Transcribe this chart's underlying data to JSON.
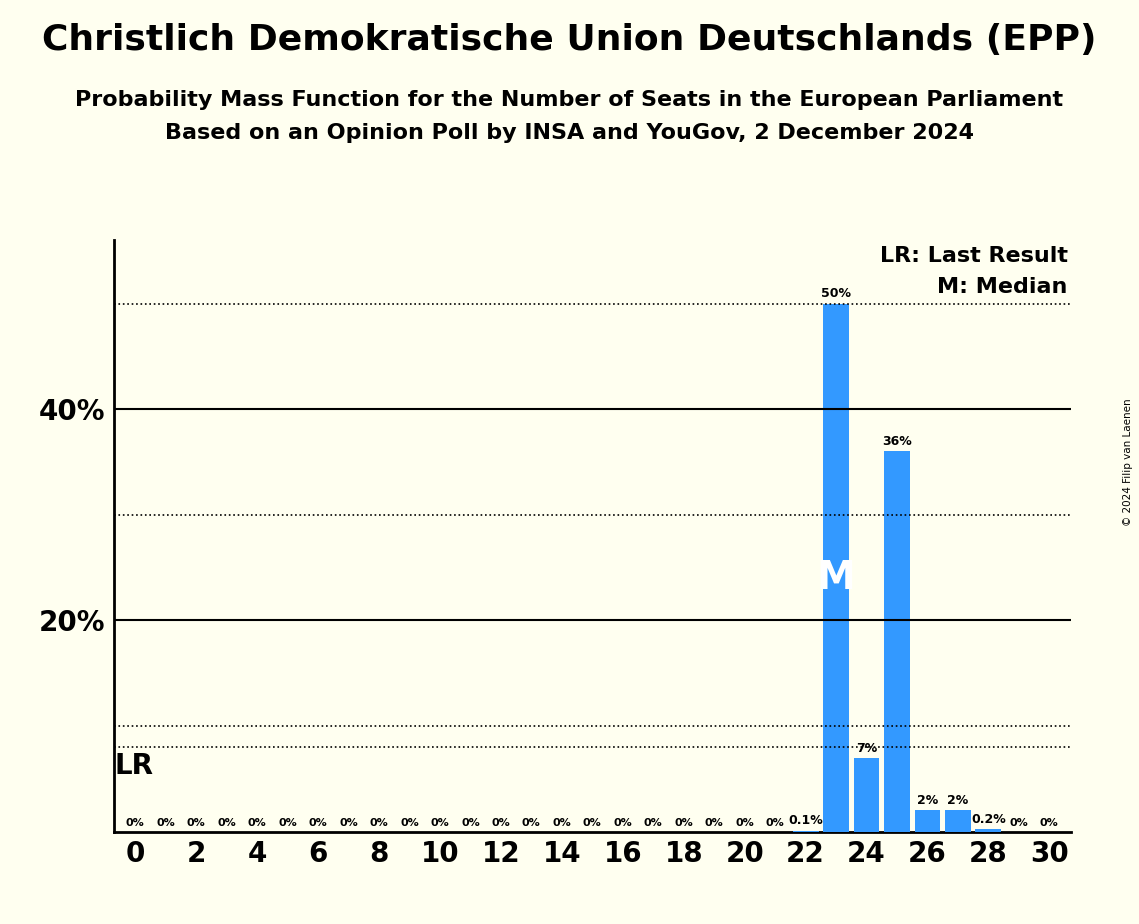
{
  "title": "Christlich Demokratische Union Deutschlands (EPP)",
  "subtitle1": "Probability Mass Function for the Number of Seats in the European Parliament",
  "subtitle2": "Based on an Opinion Poll by INSA and YouGov, 2 December 2024",
  "copyright": "© 2024 Filip van Laenen",
  "seats": [
    0,
    1,
    2,
    3,
    4,
    5,
    6,
    7,
    8,
    9,
    10,
    11,
    12,
    13,
    14,
    15,
    16,
    17,
    18,
    19,
    20,
    21,
    22,
    23,
    24,
    25,
    26,
    27,
    28,
    29,
    30
  ],
  "probabilities": [
    0,
    0,
    0,
    0,
    0,
    0,
    0,
    0,
    0,
    0,
    0,
    0,
    0,
    0,
    0,
    0,
    0,
    0,
    0,
    0,
    0,
    0,
    0.1,
    50,
    7,
    36,
    2,
    2,
    0.2,
    0,
    0
  ],
  "bar_color": "#3399FF",
  "bg_color": "#FFFFF0",
  "label_color": "#000000",
  "median_seat": 23,
  "lr_line_y": 8.0,
  "solid_grid": [
    20,
    40
  ],
  "dotted_grid": [
    10,
    30,
    50
  ],
  "ylim": [
    0,
    56
  ],
  "xlim": [
    -0.7,
    30.7
  ],
  "legend_lr": "LR: Last Result",
  "legend_m": "M: Median",
  "lr_label": "LR",
  "m_label": "M",
  "xlabel_seats": [
    0,
    2,
    4,
    6,
    8,
    10,
    12,
    14,
    16,
    18,
    20,
    22,
    24,
    26,
    28,
    30
  ],
  "bar_label_fontsize": 9,
  "zero_bar_fontsize": 8,
  "ytick_fontsize": 20,
  "xtick_fontsize": 20,
  "title_fontsize": 26,
  "subtitle_fontsize": 16,
  "legend_fontsize": 16,
  "lr_label_fontsize": 20,
  "m_label_fontsize": 28
}
